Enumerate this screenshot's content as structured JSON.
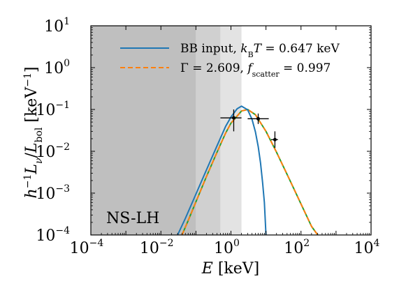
{
  "chart_data": {
    "type": "line",
    "xlabel": "E [keV]",
    "ylabel": "h⁻¹ Lν / Lbol [keV⁻¹]",
    "x_scale": "log",
    "y_scale": "log",
    "xlim": [
      0.0001,
      10000
    ],
    "ylim": [
      0.0001,
      10
    ],
    "x_ticks": [
      {
        "base": "10",
        "exp": "−4",
        "value": 0.0001
      },
      {
        "base": "10",
        "exp": "−2",
        "value": 0.01
      },
      {
        "base": "10",
        "exp": "0",
        "value": 1
      },
      {
        "base": "10",
        "exp": "2",
        "value": 100
      },
      {
        "base": "10",
        "exp": "4",
        "value": 10000
      }
    ],
    "y_ticks": [
      {
        "base": "10",
        "exp": "−4",
        "value": 0.0001
      },
      {
        "base": "10",
        "exp": "−3",
        "value": 0.001
      },
      {
        "base": "10",
        "exp": "−2",
        "value": 0.01
      },
      {
        "base": "10",
        "exp": "−1",
        "value": 0.1
      },
      {
        "base": "10",
        "exp": "0",
        "value": 1
      },
      {
        "base": "10",
        "exp": "1",
        "value": 10
      }
    ],
    "shaded_bands": [
      {
        "x_range": [
          0.0001,
          0.1
        ],
        "color": "#bfbfbf"
      },
      {
        "x_range": [
          0.1,
          0.5
        ],
        "color": "#d0d0d0"
      },
      {
        "x_range": [
          0.5,
          2.0
        ],
        "color": "#e3e3e3"
      }
    ],
    "series": [
      {
        "name": "BB input, kBT = 0.647 keV",
        "style": "solid",
        "color": "#1f77b4",
        "x": [
          0.03,
          0.05,
          0.1,
          0.2,
          0.4,
          0.7,
          1.0,
          1.5,
          2.0,
          3.0,
          4.0,
          5.0,
          6.0,
          7.0,
          8.0,
          9.0,
          10.0
        ],
        "y": [
          0.0001,
          0.00025,
          0.00095,
          0.0036,
          0.0135,
          0.039,
          0.066,
          0.104,
          0.12,
          0.098,
          0.058,
          0.029,
          0.013,
          0.0052,
          0.0018,
          0.0006,
          0.0001
        ]
      },
      {
        "name": "Γ = 2.609, fscatter = 0.997",
        "style": "dashed",
        "color": "#ff7f0e",
        "x": [
          0.04,
          0.06,
          0.1,
          0.2,
          0.4,
          0.7,
          1.0,
          2.0,
          3.0,
          5.0,
          10.0,
          20.0,
          50.0,
          100.0,
          200.0,
          300.0
        ],
        "y": [
          0.0001,
          0.00022,
          0.00062,
          0.0025,
          0.0095,
          0.027,
          0.047,
          0.092,
          0.1,
          0.075,
          0.03,
          0.0095,
          0.0019,
          0.00055,
          0.00016,
          0.0001
        ]
      },
      {
        "name": "",
        "style": "solid",
        "color": "#2ca02c",
        "x": [
          0.04,
          0.06,
          0.1,
          0.2,
          0.4,
          0.7,
          1.0,
          2.0,
          3.0,
          5.0,
          10.0,
          20.0,
          50.0,
          100.0,
          200.0,
          300.0
        ],
        "y": [
          0.0001,
          0.00022,
          0.00062,
          0.0025,
          0.0095,
          0.027,
          0.047,
          0.092,
          0.1,
          0.075,
          0.03,
          0.0095,
          0.0019,
          0.00055,
          0.00016,
          0.0001
        ]
      }
    ],
    "data_points": [
      {
        "x": 1.2,
        "y": 0.063,
        "x_err": [
          0.5,
          2.0
        ],
        "y_err": [
          0.03,
          0.1
        ]
      },
      {
        "x": 6.0,
        "y": 0.06,
        "x_err": [
          3.0,
          12.0
        ],
        "y_err": [
          0.045,
          0.08
        ]
      },
      {
        "x": 18.0,
        "y": 0.019,
        "x_err": [
          14.0,
          22.0
        ],
        "y_err": [
          0.012,
          0.03
        ]
      }
    ],
    "annotation": "NS-LH",
    "legend": {
      "position": "top-right",
      "entries": [
        {
          "label": "BB input, kBT = 0.647 keV",
          "style": "solid",
          "color": "#1f77b4"
        },
        {
          "label": "Γ = 2.609, fscatter = 0.997",
          "style": "dashed",
          "color": "#ff7f0e"
        }
      ]
    }
  }
}
